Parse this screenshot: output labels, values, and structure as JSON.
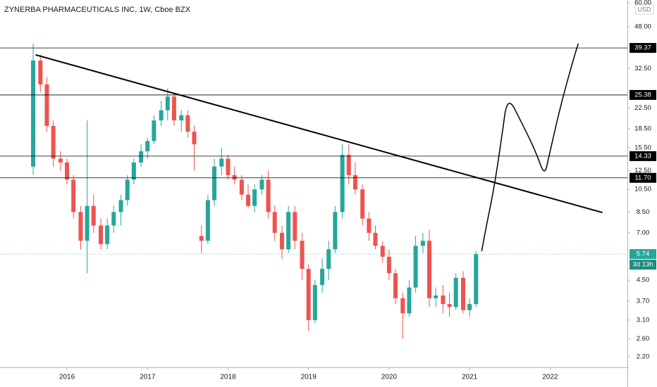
{
  "chart_data": {
    "type": "candlestick",
    "title": "ZYNERBA PHARMACEUTICALS INC, 1W, Cboe BZX",
    "currency": "USD",
    "log_scale": true,
    "grid": false,
    "up_color": "#26a69a",
    "down_color": "#ef5350",
    "xlim": [
      2015.168,
      2022.96
    ],
    "xticks": [
      2016,
      2017,
      2018,
      2019,
      2020,
      2021,
      2022
    ],
    "ylim": [
      2.02,
      61.6
    ],
    "yticks": [
      {
        "value": 60,
        "label": "60.00"
      },
      {
        "value": 48,
        "label": "48.00"
      },
      {
        "value": 32.5,
        "label": "32.50"
      },
      {
        "value": 22.5,
        "label": "22.50"
      },
      {
        "value": 18.5,
        "label": "18.50"
      },
      {
        "value": 15.5,
        "label": "15.50"
      },
      {
        "value": 12.5,
        "label": "12.50"
      },
      {
        "value": 10.5,
        "label": "10.50"
      },
      {
        "value": 8.5,
        "label": "8.50"
      },
      {
        "value": 7,
        "label": "7.00"
      },
      {
        "value": 4.5,
        "label": "4.50"
      },
      {
        "value": 3.7,
        "label": "3.70"
      },
      {
        "value": 3.1,
        "label": "3.10"
      },
      {
        "value": 2.6,
        "label": "2.60"
      },
      {
        "value": 2.2,
        "label": "2.20"
      }
    ],
    "x": [
      2015.58,
      2015.67,
      2015.75,
      2015.83,
      2015.92,
      2016.0,
      2016.08,
      2016.17,
      2016.25,
      2016.33,
      2016.42,
      2016.5,
      2016.58,
      2016.67,
      2016.75,
      2016.83,
      2016.92,
      2017.0,
      2017.08,
      2017.17,
      2017.25,
      2017.33,
      2017.42,
      2017.5,
      2017.58,
      2017.67,
      2017.75,
      2017.83,
      2017.92,
      2018.0,
      2018.08,
      2018.17,
      2018.25,
      2018.33,
      2018.42,
      2018.5,
      2018.58,
      2018.67,
      2018.75,
      2018.83,
      2018.92,
      2019.0,
      2019.08,
      2019.17,
      2019.25,
      2019.33,
      2019.42,
      2019.5,
      2019.58,
      2019.67,
      2019.75,
      2019.83,
      2019.92,
      2020.0,
      2020.08,
      2020.17,
      2020.25,
      2020.33,
      2020.42,
      2020.5,
      2020.58,
      2020.67,
      2020.75,
      2020.83,
      2020.92,
      2021.0,
      2021.08
    ],
    "open": [
      13,
      35,
      28,
      19,
      14,
      13.5,
      11.5,
      8.5,
      6.5,
      9,
      7.5,
      6.3,
      7.5,
      8.5,
      9.5,
      11.5,
      13.5,
      15,
      16.5,
      20,
      22,
      25,
      20,
      21,
      18,
      6.8,
      6.5,
      9.5,
      13,
      14,
      12,
      11.5,
      10,
      9,
      10.5,
      11.5,
      8.5,
      7,
      6,
      8.5,
      6.5,
      5,
      3.1,
      4.3,
      5,
      6,
      8.5,
      14.5,
      12,
      10.5,
      8,
      7,
      6.2,
      5.6,
      4.8,
      3.8,
      3.3,
      4.2,
      6.2,
      6.5,
      3.8,
      3.9,
      3.6,
      3.5,
      4.6,
      3.4,
      3.6
    ],
    "high": [
      41,
      37,
      30,
      20,
      15,
      14,
      12,
      9,
      20,
      10,
      8,
      8,
      9,
      10,
      12,
      14,
      16,
      17,
      21,
      24,
      27,
      26,
      22,
      22,
      19,
      7.5,
      10,
      14,
      15.5,
      14.5,
      13,
      12,
      11,
      11,
      12,
      12.5,
      9,
      7.5,
      9,
      9,
      7,
      5.2,
      4.5,
      5.5,
      6.5,
      9,
      16,
      16,
      13.5,
      11,
      8.5,
      7.5,
      6.5,
      6,
      5,
      4,
      4.5,
      6.8,
      7,
      7.2,
      4.2,
      4.3,
      4,
      4.8,
      4.9,
      3.8,
      5.9
    ],
    "low": [
      12,
      26,
      18,
      13,
      12.5,
      11,
      8,
      6,
      4.8,
      7,
      6,
      6,
      7,
      7.5,
      9,
      11,
      13,
      14,
      16,
      19,
      20,
      19,
      18,
      17,
      12.5,
      5.8,
      6.3,
      9,
      12,
      11.5,
      11,
      9.5,
      8.8,
      8.5,
      10,
      8,
      6.5,
      5.5,
      5.8,
      6,
      4.5,
      2.8,
      3,
      4,
      4.5,
      5.8,
      8,
      11,
      10,
      7.5,
      6.5,
      6,
      5.3,
      4.5,
      3.6,
      2.6,
      3.2,
      4,
      5.8,
      3.5,
      3.5,
      3.3,
      3.2,
      3.4,
      3.3,
      3.2,
      3.5
    ],
    "close": [
      35,
      28,
      19,
      14,
      13.5,
      11.5,
      8.5,
      6.5,
      9,
      7.5,
      6.3,
      7.5,
      8.5,
      9.5,
      11.5,
      13.5,
      15,
      16.5,
      20,
      22,
      25,
      20,
      21,
      18,
      16,
      6.5,
      9.5,
      13,
      14,
      12,
      11.5,
      10,
      9,
      10.5,
      11.5,
      8.5,
      7,
      6,
      8.5,
      6.5,
      5,
      3.1,
      4.3,
      5,
      6,
      8.5,
      14.5,
      12,
      10.5,
      8,
      7,
      6.2,
      5.6,
      4.8,
      3.8,
      3.3,
      4.2,
      6.2,
      6.5,
      3.8,
      3.9,
      3.6,
      3.5,
      4.6,
      3.4,
      3.6,
      5.74
    ],
    "levels": [
      {
        "value": 39.37,
        "label": "39.37"
      },
      {
        "value": 25.38,
        "label": "25.38"
      },
      {
        "value": 14.33,
        "label": "14.33"
      },
      {
        "value": 11.7,
        "label": "11.70"
      }
    ],
    "last_price": {
      "value": 5.74,
      "label": "5.74"
    },
    "countdown": "3d 13h",
    "trendline": {
      "x": [
        2015.61,
        2022.65
      ],
      "y": [
        36.9,
        8.46
      ]
    },
    "freehand": {
      "x": [
        2021.15,
        2021.21,
        2021.3,
        2021.4,
        2021.47,
        2021.65,
        2021.82,
        2021.93,
        2021.98,
        2022.13,
        2022.3,
        2022.35
      ],
      "y": [
        5.89,
        7.52,
        10.44,
        17.1,
        25.4,
        19.5,
        15.0,
        11.9,
        14.0,
        23.0,
        36.4,
        41.0
      ]
    }
  }
}
